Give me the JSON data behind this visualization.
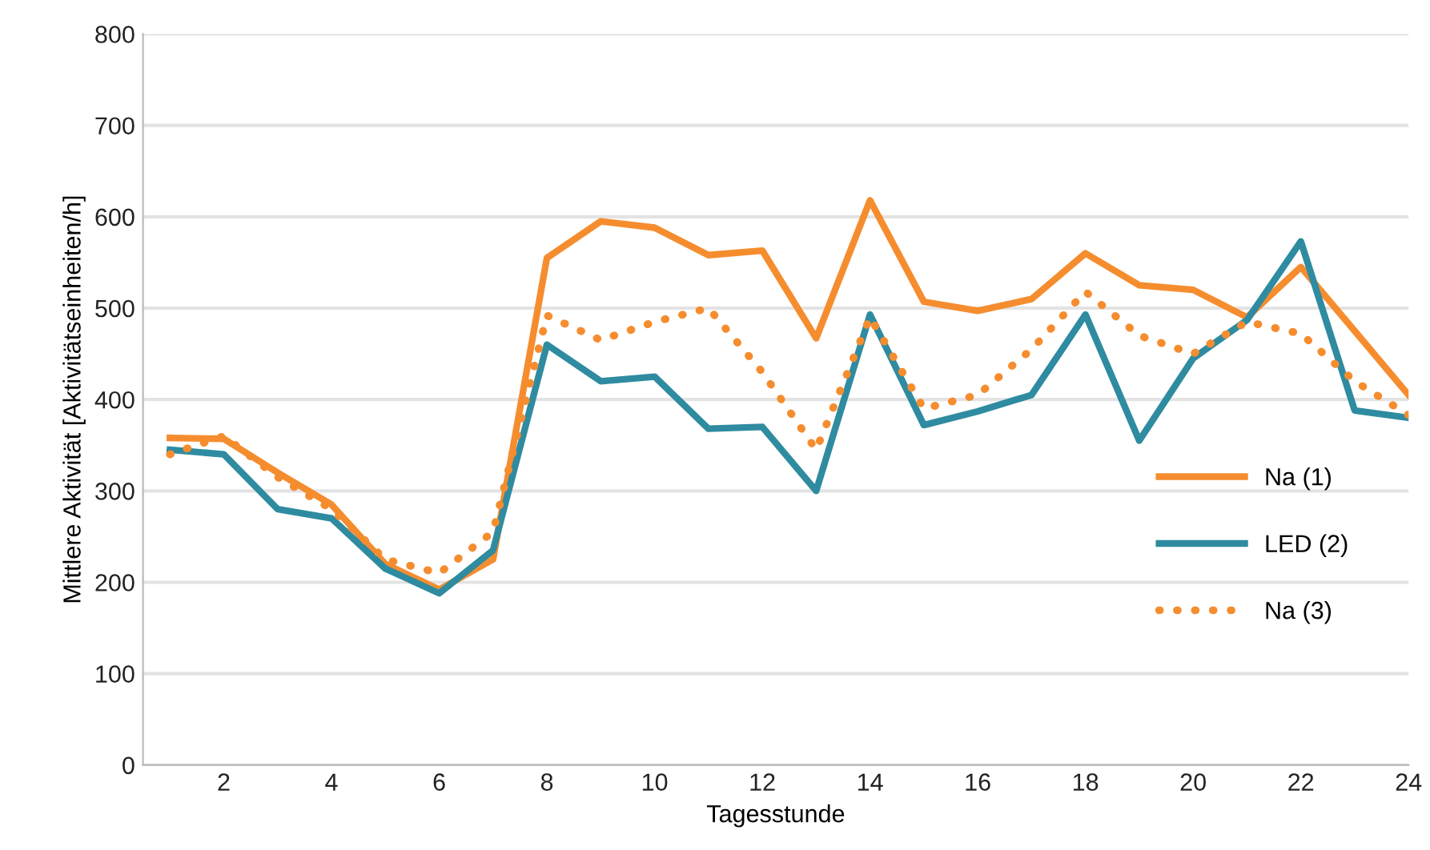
{
  "chart_data": {
    "type": "line",
    "xlabel": "Tagesstunde",
    "ylabel": "Mittlere Aktivität [Aktivitätseinheiten/h]",
    "x": [
      1,
      2,
      3,
      4,
      5,
      6,
      7,
      8,
      9,
      10,
      11,
      12,
      13,
      14,
      15,
      16,
      17,
      18,
      19,
      20,
      21,
      22,
      23,
      24
    ],
    "series": [
      {
        "name": "Na (1)",
        "color": "#f58d2f",
        "line_style": "solid",
        "values": [
          358,
          357,
          320,
          285,
          220,
          192,
          225,
          555,
          595,
          588,
          558,
          563,
          467,
          618,
          507,
          497,
          510,
          560,
          525,
          520,
          490,
          545,
          475,
          405
        ]
      },
      {
        "name": "LED (2)",
        "color": "#2f8ba0",
        "line_style": "solid",
        "values": [
          345,
          340,
          280,
          270,
          215,
          188,
          235,
          460,
          420,
          425,
          368,
          370,
          300,
          493,
          372,
          387,
          405,
          493,
          355,
          445,
          487,
          573,
          388,
          380
        ]
      },
      {
        "name": "Na (3)",
        "color": "#f58d2f",
        "line_style": "dotted",
        "values": [
          340,
          360,
          315,
          280,
          225,
          210,
          255,
          492,
          465,
          485,
          500,
          430,
          345,
          490,
          390,
          405,
          455,
          518,
          470,
          450,
          485,
          472,
          420,
          383
        ]
      }
    ],
    "xlim": [
      0.5,
      24
    ],
    "ylim": [
      0,
      800
    ],
    "xticks": [
      2,
      4,
      6,
      8,
      10,
      12,
      14,
      16,
      18,
      20,
      22,
      24
    ],
    "yticks": [
      0,
      100,
      200,
      300,
      400,
      500,
      600,
      700,
      800
    ],
    "grid": "y",
    "legend": "right",
    "marker": "none"
  }
}
